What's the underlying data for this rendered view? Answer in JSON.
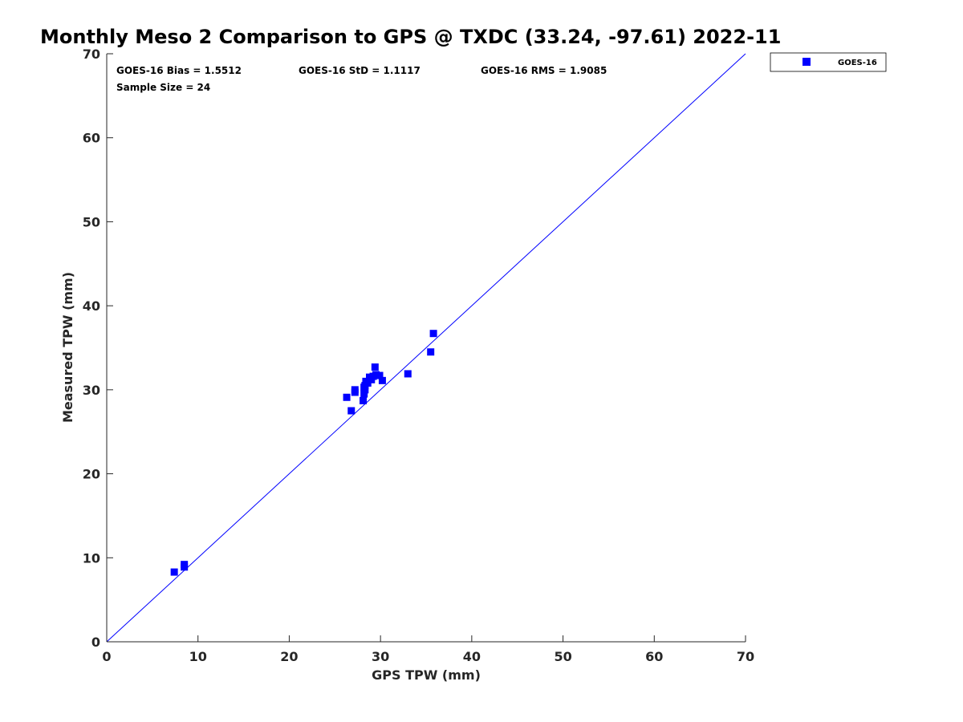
{
  "chart_data": {
    "type": "scatter",
    "title": "Monthly Meso 2 Comparison to GPS @ TXDC (33.24, -97.61) 2022-11",
    "xlabel": "GPS TPW (mm)",
    "ylabel": "Measured TPW (mm)",
    "xlim": [
      0,
      70
    ],
    "ylim": [
      0,
      70
    ],
    "xticks": [
      "0",
      "10",
      "20",
      "30",
      "40",
      "50",
      "60",
      "70"
    ],
    "yticks": [
      "0",
      "10",
      "20",
      "30",
      "40",
      "50",
      "60",
      "70"
    ],
    "grid": false,
    "legend_position": "outside top-right",
    "reference_line": {
      "from": [
        0,
        0
      ],
      "to": [
        70,
        70
      ],
      "color": "#0000ff"
    },
    "stats": {
      "bias": "GOES-16 Bias = 1.5512",
      "std": "GOES-16 StD = 1.1117",
      "rms": "GOES-16 RMS = 1.9085",
      "sample": "Sample Size = 24"
    },
    "series": [
      {
        "name": "GOES-16",
        "color": "#0000ff",
        "marker": "square",
        "points": [
          [
            7.4,
            8.3
          ],
          [
            8.5,
            8.9
          ],
          [
            8.5,
            9.2
          ],
          [
            26.3,
            29.1
          ],
          [
            26.8,
            27.5
          ],
          [
            27.2,
            29.7
          ],
          [
            27.2,
            30.0
          ],
          [
            28.1,
            28.7
          ],
          [
            28.2,
            29.5
          ],
          [
            28.3,
            30.0
          ],
          [
            28.3,
            30.5
          ],
          [
            28.4,
            31.0
          ],
          [
            28.6,
            30.8
          ],
          [
            28.8,
            31.5
          ],
          [
            29.0,
            31.2
          ],
          [
            29.2,
            31.6
          ],
          [
            29.4,
            32.7
          ],
          [
            29.5,
            31.8
          ],
          [
            29.9,
            31.7
          ],
          [
            30.2,
            31.1
          ],
          [
            33.0,
            31.9
          ],
          [
            35.5,
            34.5
          ],
          [
            35.8,
            36.7
          ],
          [
            28.2,
            30.3
          ]
        ]
      }
    ]
  }
}
